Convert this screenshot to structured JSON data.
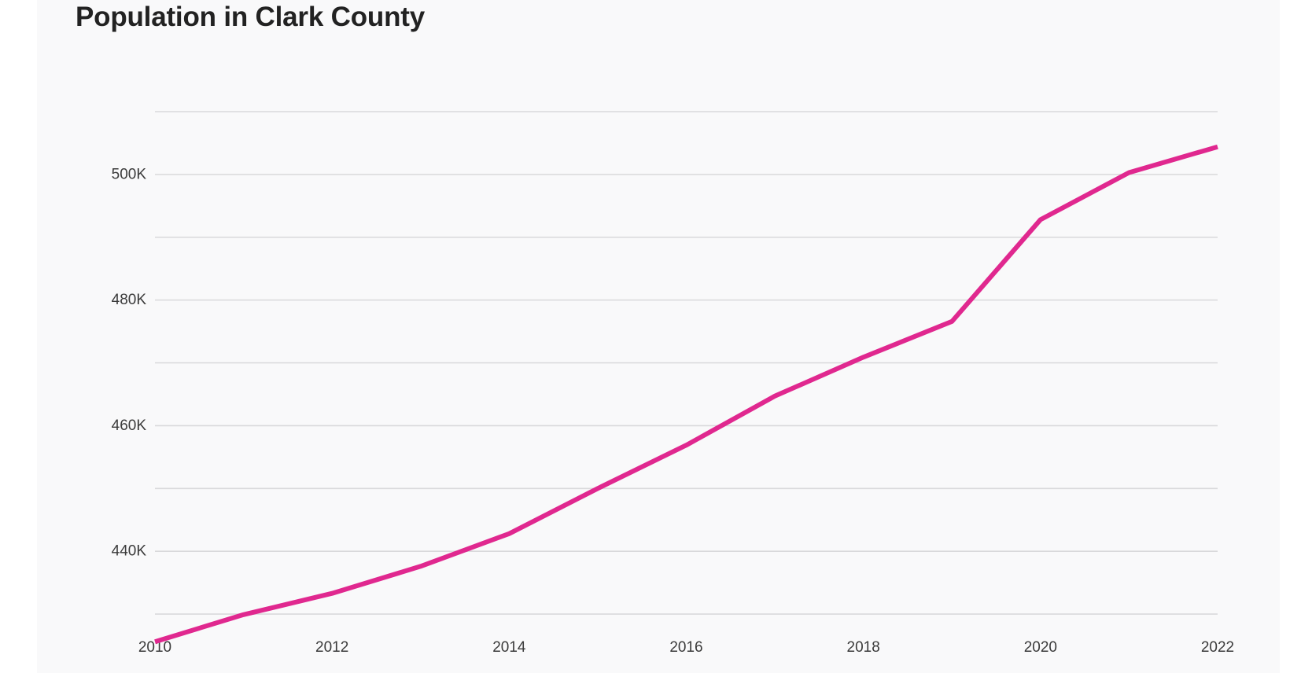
{
  "title": "Population in Clark County",
  "colors": {
    "line": "#e0288f",
    "background": "#f9f9fa",
    "grid": "#d9d9db"
  },
  "chart_data": {
    "type": "line",
    "title": "Population in Clark County",
    "xlabel": "",
    "ylabel": "",
    "x": [
      2010,
      2011,
      2012,
      2013,
      2014,
      2015,
      2016,
      2017,
      2018,
      2019,
      2020,
      2021,
      2022
    ],
    "series": [
      {
        "values": [
          425600,
          429900,
          433300,
          437600,
          442800,
          450000,
          456900,
          464700,
          470900,
          476600,
          492800,
          500300,
          504400
        ]
      }
    ],
    "xlim": [
      2010,
      2022
    ],
    "ylim": [
      428000,
      510000
    ],
    "x_ticks": [
      {
        "value": 2010,
        "label": "2010"
      },
      {
        "value": 2012,
        "label": "2012"
      },
      {
        "value": 2014,
        "label": "2014"
      },
      {
        "value": 2016,
        "label": "2016"
      },
      {
        "value": 2018,
        "label": "2018"
      },
      {
        "value": 2020,
        "label": "2020"
      },
      {
        "value": 2022,
        "label": "2022"
      }
    ],
    "y_ticks": [
      {
        "value": 440000,
        "label": "440K"
      },
      {
        "value": 460000,
        "label": "460K"
      },
      {
        "value": 480000,
        "label": "480K"
      },
      {
        "value": 500000,
        "label": "500K"
      }
    ],
    "gridlines": [
      430000,
      440000,
      450000,
      460000,
      470000,
      480000,
      490000,
      500000,
      510000
    ],
    "grid": true,
    "legend": "none"
  }
}
